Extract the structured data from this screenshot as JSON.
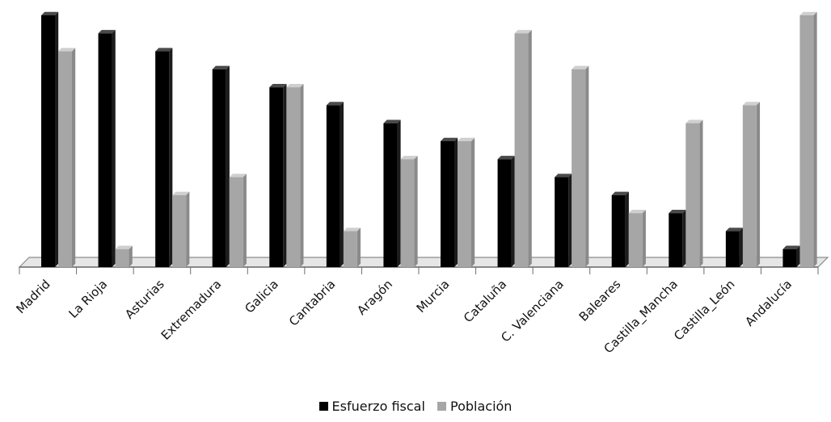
{
  "chart_data": {
    "type": "bar",
    "categories": [
      "Madrid",
      "La Rioja",
      "Asturias",
      "Extremadura",
      "Galicia",
      "Cantabria",
      "Aragón",
      "Murcia",
      "Cataluña",
      "C. Valenciana",
      "Baleares",
      "Castilla_Mancha",
      "Castilla_León",
      "Andalucía"
    ],
    "series": [
      {
        "name": "Esfuerzo fiscal",
        "values": [
          14,
          13,
          12,
          11,
          10,
          9,
          8,
          7,
          6,
          5,
          4,
          3,
          2,
          1
        ],
        "color": "#000000"
      },
      {
        "name": "Población",
        "values": [
          12,
          1,
          4,
          5,
          10,
          2,
          6,
          7,
          13,
          11,
          3,
          8,
          9,
          14
        ],
        "color": "#a6a6a6"
      }
    ],
    "ylim": [
      0,
      14
    ],
    "grid": false,
    "style": "3d-column",
    "legend_position": "bottom"
  }
}
